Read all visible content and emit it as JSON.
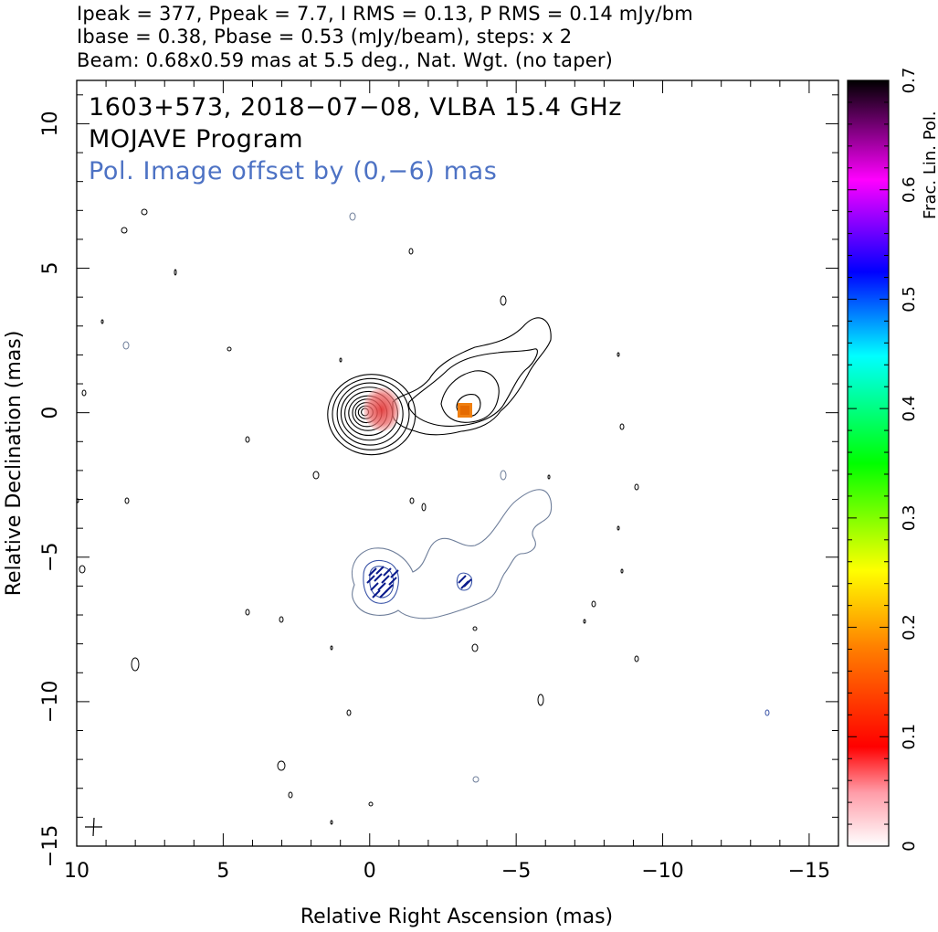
{
  "header": {
    "line1": "Ipeak = 377, Ppeak = 7.7, I RMS = 0.13, P RMS = 0.14 mJy/bm",
    "line2": "Ibase = 0.38, Pbase = 0.53 (mJy/beam), steps: x 2",
    "line3": "Beam: 0.68x0.59 mas at 5.5 deg., Nat. Wgt. (no taper)"
  },
  "annotations": {
    "source": "1603+573, 2018−07−08, VLBA 15.4 GHz",
    "program": "MOJAVE Program",
    "pol_offset": "Pol. Image offset by (0,−6) mas"
  },
  "colors": {
    "total_contour": "#000000",
    "pol_contour": "#5a6fa8",
    "annotation_blue": "#4d72c4",
    "pol_sticks": "#0a1a8c"
  },
  "chart_data": {
    "type": "contour",
    "xlabel": "Relative Right Ascension (mas)",
    "ylabel": "Relative Declination (mas)",
    "xlim": [
      10,
      -16
    ],
    "ylim": [
      -15,
      11.5
    ],
    "x_ticks": [
      10,
      5,
      0,
      -5,
      -10,
      -15
    ],
    "x_tick_labels": [
      "10",
      "5",
      "0",
      "−5",
      "−10",
      "−15"
    ],
    "y_ticks": [
      10,
      5,
      0,
      -5,
      -10,
      -15
    ],
    "y_tick_labels": [
      "10",
      "5",
      "0",
      "−5",
      "−10",
      "−15"
    ],
    "total_intensity_contour_levels_mJy": [
      0.38,
      0.76,
      1.52,
      3.04,
      6.08,
      12.16,
      24.32,
      48.64,
      97.28,
      194.56
    ],
    "core": {
      "x": 0.0,
      "y": 0.0
    },
    "jet_knot": {
      "x": -3.3,
      "y": 0.0
    },
    "pol_peaks": [
      {
        "x": -0.3,
        "y": -0.1,
        "frac": 0.1
      },
      {
        "x": -3.3,
        "y": 0.0,
        "frac": 0.2
      }
    ],
    "colorbar": {
      "label": "Frac. Lin. Pol.",
      "min": 0,
      "max": 0.7,
      "ticks": [
        0,
        0.1,
        0.2,
        0.3,
        0.4,
        0.5,
        0.6,
        0.7
      ],
      "tick_labels": [
        "0",
        "0.1",
        "0.2",
        "0.3",
        "0.4",
        "0.5",
        "0.6",
        "0.7"
      ]
    }
  }
}
